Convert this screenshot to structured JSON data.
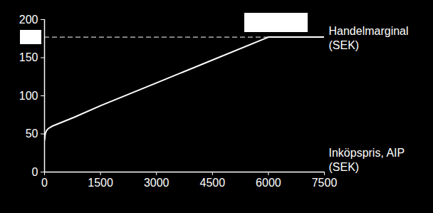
{
  "chart_data": {
    "type": "line",
    "x": [
      0,
      20,
      50,
      100,
      200,
      400,
      800,
      1500,
      3000,
      4500,
      6000,
      7500
    ],
    "values": [
      42,
      50,
      54,
      57,
      60,
      64,
      72,
      87,
      117,
      147,
      177,
      177
    ],
    "color": "#ffffff",
    "x_label": "Inköpspris, AIP\n(SEK)",
    "y_label": "Handelmarginal\n(SEK)",
    "reference_line": {
      "value": 177,
      "line_style": "dashed"
    },
    "xlim": [
      0,
      7500
    ],
    "xticks": [
      0,
      1500,
      3000,
      4500,
      6000,
      7500
    ],
    "ylim": [
      0,
      200
    ],
    "yticks": [
      0,
      50,
      100,
      150,
      200
    ],
    "grid": false
  }
}
